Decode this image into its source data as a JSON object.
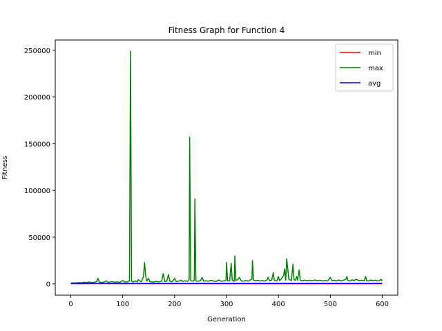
{
  "chart_data": {
    "type": "line",
    "title": "Fitness Graph for Function 4",
    "xlabel": "Generation",
    "ylabel": "Fitness",
    "xlim": [
      -30,
      630
    ],
    "ylim": [
      -12000,
      261000
    ],
    "xticks": [
      0,
      100,
      200,
      300,
      400,
      500,
      600
    ],
    "yticks": [
      0,
      50000,
      100000,
      150000,
      200000,
      250000
    ],
    "grid": false,
    "legend_position": "top-right",
    "series": [
      {
        "name": "min",
        "color": "#ff0000",
        "points": [
          [
            0,
            200
          ],
          [
            600,
            200
          ]
        ]
      },
      {
        "name": "max",
        "color": "#008000",
        "points": [
          [
            0,
            800
          ],
          [
            5,
            1200
          ],
          [
            10,
            900
          ],
          [
            15,
            1500
          ],
          [
            20,
            1100
          ],
          [
            25,
            1800
          ],
          [
            30,
            1300
          ],
          [
            35,
            2100
          ],
          [
            40,
            1400
          ],
          [
            45,
            1700
          ],
          [
            50,
            2500
          ],
          [
            52,
            6000
          ],
          [
            55,
            2000
          ],
          [
            60,
            1500
          ],
          [
            65,
            2200
          ],
          [
            68,
            3200
          ],
          [
            72,
            1600
          ],
          [
            78,
            2400
          ],
          [
            85,
            1800
          ],
          [
            90,
            2000
          ],
          [
            95,
            1700
          ],
          [
            100,
            3800
          ],
          [
            104,
            1900
          ],
          [
            110,
            2300
          ],
          [
            113,
            3500
          ],
          [
            115,
            249000
          ],
          [
            117,
            3200
          ],
          [
            120,
            2000
          ],
          [
            125,
            3200
          ],
          [
            128,
            2100
          ],
          [
            130,
            4600
          ],
          [
            133,
            3100
          ],
          [
            136,
            2300
          ],
          [
            140,
            8000
          ],
          [
            142,
            23000
          ],
          [
            144,
            10000
          ],
          [
            146,
            3000
          ],
          [
            150,
            6000
          ],
          [
            152,
            2500
          ],
          [
            158,
            1900
          ],
          [
            165,
            2600
          ],
          [
            170,
            2100
          ],
          [
            175,
            2900
          ],
          [
            178,
            11000
          ],
          [
            181,
            2500
          ],
          [
            185,
            3000
          ],
          [
            188,
            10000
          ],
          [
            191,
            2800
          ],
          [
            195,
            2200
          ],
          [
            200,
            6000
          ],
          [
            203,
            2500
          ],
          [
            208,
            3000
          ],
          [
            212,
            4000
          ],
          [
            216,
            2600
          ],
          [
            220,
            3400
          ],
          [
            225,
            2700
          ],
          [
            228,
            5000
          ],
          [
            229,
            157000
          ],
          [
            231,
            3500
          ],
          [
            235,
            2900
          ],
          [
            238,
            4000
          ],
          [
            239,
            91000
          ],
          [
            241,
            3200
          ],
          [
            245,
            2800
          ],
          [
            250,
            3600
          ],
          [
            253,
            7000
          ],
          [
            256,
            2900
          ],
          [
            260,
            3400
          ],
          [
            265,
            2800
          ],
          [
            270,
            3900
          ],
          [
            275,
            3100
          ],
          [
            280,
            2700
          ],
          [
            285,
            4100
          ],
          [
            290,
            2800
          ],
          [
            295,
            3300
          ],
          [
            299,
            3700
          ],
          [
            300,
            23000
          ],
          [
            302,
            3500
          ],
          [
            306,
            3100
          ],
          [
            309,
            22000
          ],
          [
            311,
            3700
          ],
          [
            315,
            2800
          ],
          [
            316,
            30000
          ],
          [
            318,
            3500
          ],
          [
            322,
            5000
          ],
          [
            325,
            7000
          ],
          [
            328,
            3400
          ],
          [
            332,
            2900
          ],
          [
            337,
            3600
          ],
          [
            342,
            3000
          ],
          [
            345,
            4000
          ],
          [
            349,
            5000
          ],
          [
            350,
            25000
          ],
          [
            352,
            4200
          ],
          [
            356,
            3300
          ],
          [
            360,
            3800
          ],
          [
            365,
            3100
          ],
          [
            370,
            3600
          ],
          [
            374,
            3000
          ],
          [
            378,
            4200
          ],
          [
            380,
            7000
          ],
          [
            383,
            3400
          ],
          [
            387,
            4000
          ],
          [
            390,
            12000
          ],
          [
            392,
            3800
          ],
          [
            397,
            3200
          ],
          [
            400,
            8000
          ],
          [
            402,
            3600
          ],
          [
            405,
            5000
          ],
          [
            410,
            9000
          ],
          [
            412,
            16000
          ],
          [
            414,
            4000
          ],
          [
            416,
            27000
          ],
          [
            418,
            16000
          ],
          [
            420,
            5000
          ],
          [
            423,
            4200
          ],
          [
            425,
            3500
          ],
          [
            428,
            21000
          ],
          [
            430,
            4500
          ],
          [
            433,
            3800
          ],
          [
            435,
            8000
          ],
          [
            437,
            4100
          ],
          [
            440,
            15000
          ],
          [
            442,
            3900
          ],
          [
            446,
            3300
          ],
          [
            450,
            4000
          ],
          [
            455,
            3500
          ],
          [
            460,
            3800
          ],
          [
            465,
            3200
          ],
          [
            470,
            4300
          ],
          [
            475,
            3400
          ],
          [
            480,
            3900
          ],
          [
            485,
            3100
          ],
          [
            490,
            3600
          ],
          [
            495,
            3200
          ],
          [
            500,
            7000
          ],
          [
            503,
            3400
          ],
          [
            508,
            3900
          ],
          [
            512,
            3100
          ],
          [
            516,
            4200
          ],
          [
            520,
            3300
          ],
          [
            525,
            3800
          ],
          [
            530,
            5000
          ],
          [
            532,
            8000
          ],
          [
            534,
            3600
          ],
          [
            538,
            3100
          ],
          [
            542,
            4400
          ],
          [
            546,
            3500
          ],
          [
            550,
            5000
          ],
          [
            555,
            3400
          ],
          [
            560,
            3900
          ],
          [
            565,
            3200
          ],
          [
            568,
            8000
          ],
          [
            570,
            3600
          ],
          [
            574,
            3100
          ],
          [
            578,
            4200
          ],
          [
            582,
            3400
          ],
          [
            586,
            4000
          ],
          [
            590,
            3300
          ],
          [
            595,
            3600
          ],
          [
            598,
            5000
          ],
          [
            600,
            3000
          ]
        ]
      },
      {
        "name": "avg",
        "color": "#0000ff",
        "points": [
          [
            0,
            500
          ],
          [
            100,
            600
          ],
          [
            200,
            650
          ],
          [
            300,
            700
          ],
          [
            400,
            700
          ],
          [
            500,
            720
          ],
          [
            600,
            700
          ]
        ]
      }
    ]
  }
}
